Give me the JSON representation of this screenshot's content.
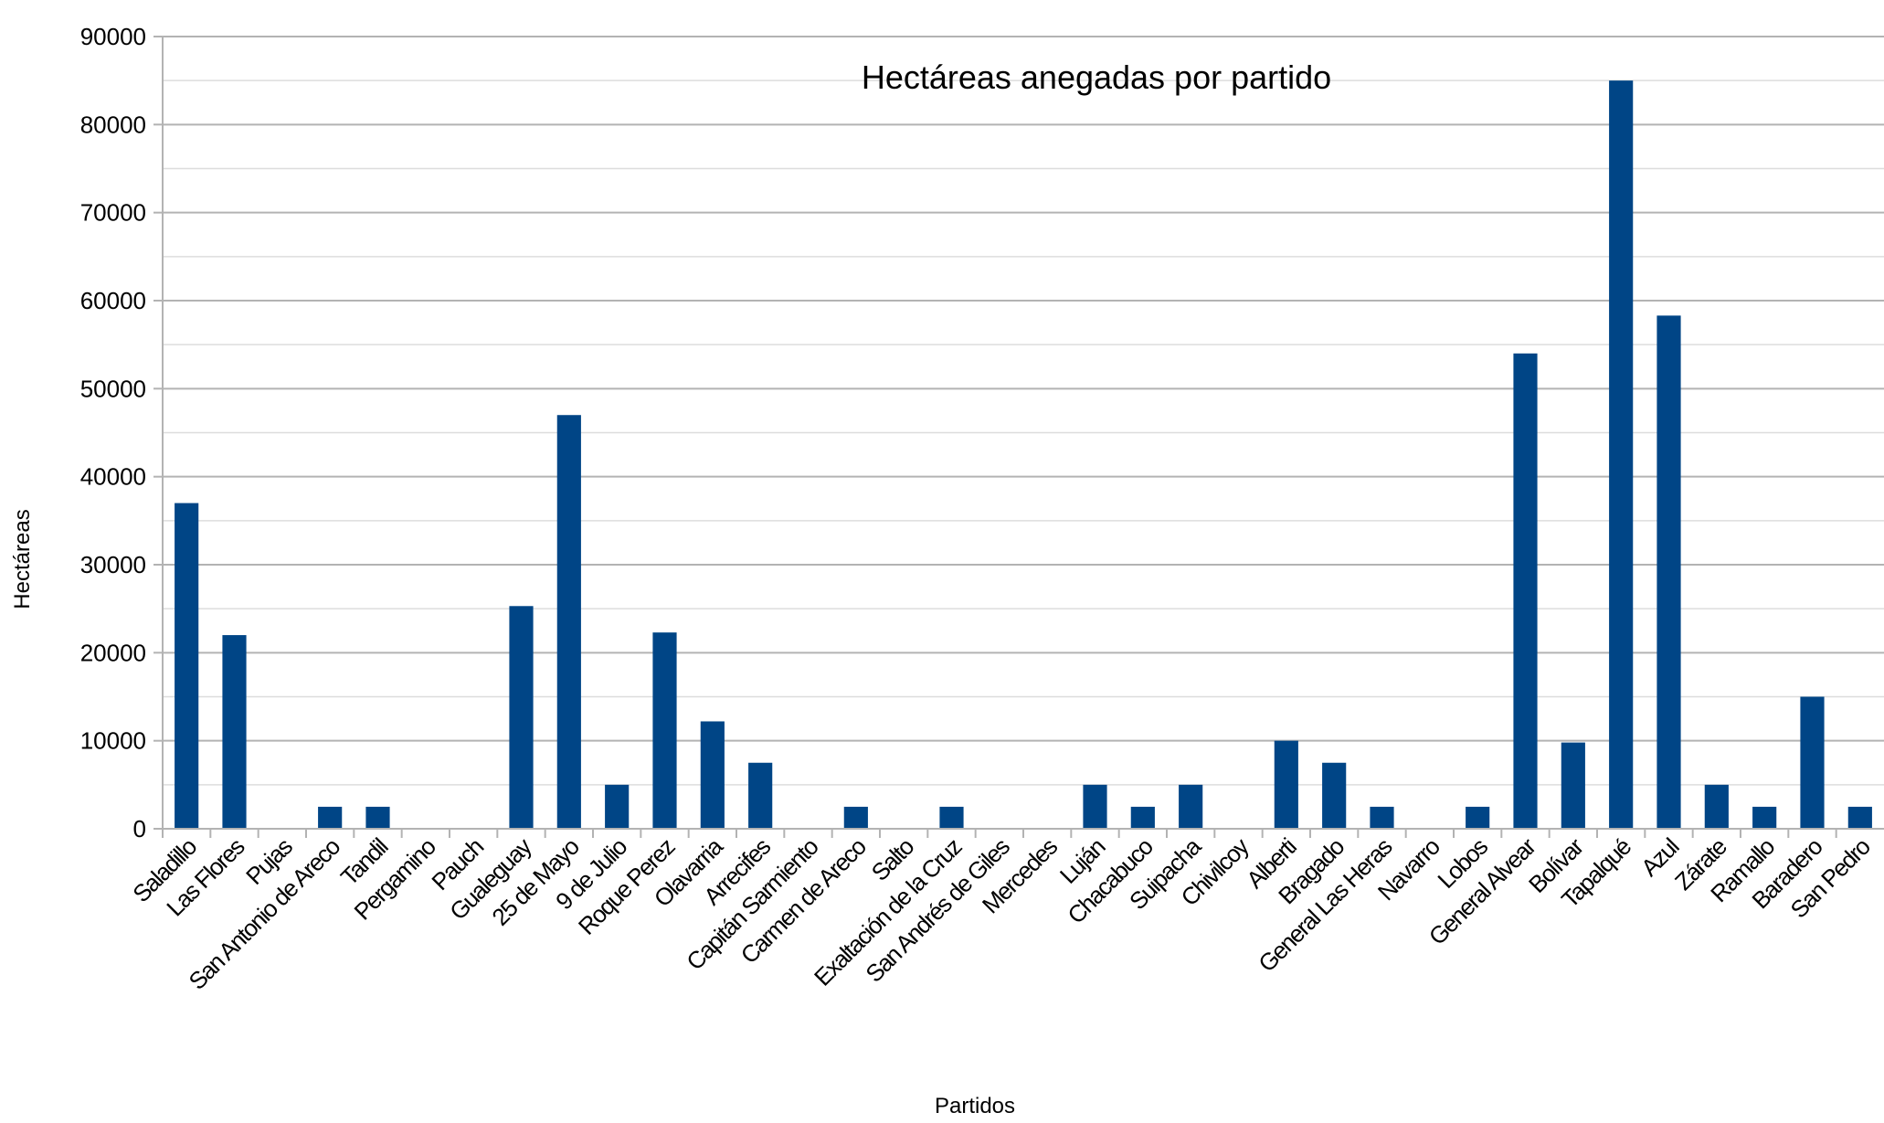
{
  "chart_data": {
    "type": "bar",
    "title": "Hectáreas anegadas por partido",
    "xlabel": "Partidos",
    "ylabel": "Hectáreas",
    "ylim": [
      0,
      90000
    ],
    "yticks": [
      0,
      10000,
      20000,
      30000,
      40000,
      50000,
      60000,
      70000,
      80000,
      90000
    ],
    "grid": true,
    "legend": "none",
    "bar_color": "#004586",
    "categories": [
      "Saladillo",
      "Las Flores",
      "Pujas",
      "San Antonio de Areco",
      "Tandil",
      "Pergamino",
      "Pauch",
      "Gualeguay",
      "25 de Mayo",
      "9 de Julio",
      "Roque Perez",
      "Olavarria",
      "Arrecifes",
      "Capitán Sarmiento",
      "Carmen de Areco",
      "Salto",
      "Exaltación de la Cruz",
      "San Andrés de Giles",
      "Mercedes",
      "Luján",
      "Chacabuco",
      "Suipacha",
      "Chivilcoy",
      "Alberti",
      "Bragado",
      "General Las Heras",
      "Navarro",
      "Lobos",
      "General Alvear",
      "Bolívar",
      "Tapalqué",
      "Azul",
      "Zárate",
      "Ramallo",
      "Baradero",
      "San Pedro"
    ],
    "values": [
      37000,
      22000,
      0,
      2500,
      2500,
      0,
      0,
      25300,
      47000,
      5000,
      22300,
      12200,
      7500,
      0,
      2500,
      0,
      2500,
      0,
      0,
      5000,
      2500,
      5000,
      0,
      10000,
      7500,
      2500,
      0,
      2500,
      54000,
      9800,
      85000,
      58300,
      5000,
      2500,
      15000,
      2500
    ]
  }
}
